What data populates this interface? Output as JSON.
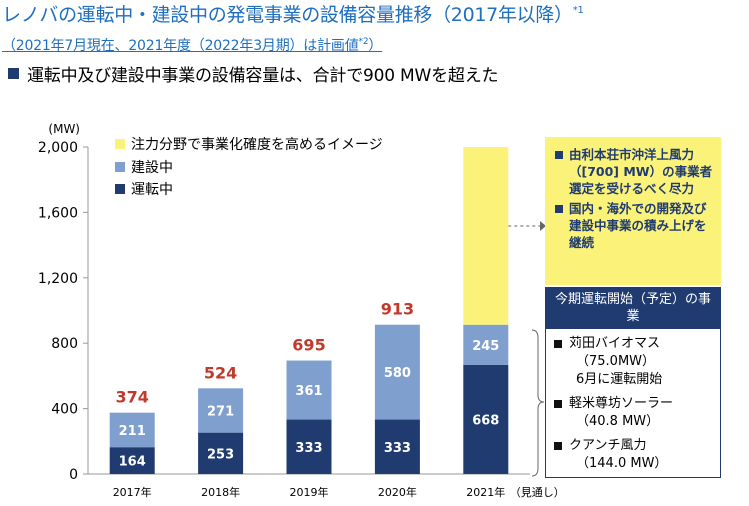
{
  "title": "レノバの運転中・建設中の発電事業の設備容量推移（2017年以降）",
  "title_note": "*1",
  "subtitle": "（2021年7月現在、2021年度（2022年3月期）は計画値",
  "subtitle_note": "*2",
  "subtitle_end": "）",
  "headline": "運転中及び建設中事業の設備容量は、合計で900 MWを超えた",
  "colors": {
    "operating": "#1f3b70",
    "construction": "#7f9fcf",
    "image": "#fbf27a",
    "total_label": "#c0392b",
    "axis": "#999999"
  },
  "chart_data": {
    "type": "bar",
    "stacked": true,
    "unit_label": "(MW)",
    "categories": [
      "2017年",
      "2018年",
      "2019年",
      "2020年",
      "2021年"
    ],
    "x_suffix": "（見通し）",
    "ylim": [
      0,
      2000
    ],
    "yticks": [
      0,
      400,
      800,
      1200,
      1600,
      2000
    ],
    "ytick_labels": [
      "0",
      "400",
      "800",
      "1,200",
      "1,600",
      "2,000"
    ],
    "series": [
      {
        "name": "運転中",
        "values": [
          164,
          253,
          333,
          333,
          668
        ]
      },
      {
        "name": "建設中",
        "values": [
          211,
          271,
          361,
          580,
          245
        ]
      },
      {
        "name": "注力分野で事業化確度を高めるイメージ",
        "values": [
          null,
          null,
          null,
          null,
          1087
        ]
      }
    ],
    "totals": [
      "374",
      "524",
      "695",
      "913",
      null
    ],
    "legend_position": "top-left"
  },
  "yellow_box": {
    "items": [
      "由利本荘市沖洋上風力（[700] MW）の事業者選定を受けるべく尽力",
      "国内・海外での開発及び建設中事業の積み上げを継続"
    ]
  },
  "projects_box": {
    "header": "今期運転開始（予定）の事業",
    "items": [
      {
        "name": "苅田バイオマス",
        "capacity": "（75.0MW）",
        "note": "6月に運転開始"
      },
      {
        "name": "軽米尊坊ソーラー",
        "capacity": "（40.8 MW）",
        "note": ""
      },
      {
        "name": "クアンチ風力",
        "capacity": "（144.0 MW）",
        "note": ""
      }
    ]
  }
}
